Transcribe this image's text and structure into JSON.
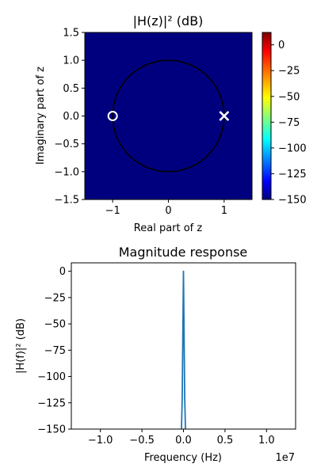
{
  "chart_data": [
    {
      "type": "heatmap",
      "title": "|H(z)|² (dB)",
      "xlabel": "Real part of z",
      "ylabel": "Imaginary part of z",
      "xlim": [
        -1.5,
        1.5
      ],
      "ylim": [
        -1.5,
        1.5
      ],
      "xticks": [
        -1,
        0,
        1
      ],
      "xtick_labels": [
        "−1",
        "0",
        "1"
      ],
      "yticks": [
        1.5,
        1.0,
        0.5,
        0.0,
        -0.5,
        -1.0,
        -1.5
      ],
      "ytick_labels": [
        "1.5",
        "1.0",
        "0.5",
        "0.0",
        "−0.5",
        "−1.0",
        "−1.5"
      ],
      "colormap": "jet",
      "colorbar": {
        "range": [
          -150,
          12
        ],
        "ticks": [
          0,
          -25,
          -50,
          -75,
          -100,
          -125,
          -150
        ],
        "tick_labels": [
          "0",
          "−25",
          "−50",
          "−75",
          "−100",
          "−125",
          "−150"
        ]
      },
      "field_value_db": -150,
      "unit_circle": {
        "center": [
          0,
          0
        ],
        "radius": 1
      },
      "zeros": [
        {
          "re": -1,
          "im": 0
        }
      ],
      "poles": [
        {
          "re": 1,
          "im": 0
        }
      ],
      "grid": false
    },
    {
      "type": "line",
      "title": "Magnitude response",
      "xlabel": "Frequency (Hz)",
      "ylabel": "|H(f)|² (dB)",
      "x_offset_label": "1e7",
      "xlim": [
        -13500000,
        13500000
      ],
      "ylim": [
        -150,
        8
      ],
      "xticks": [
        -10000000,
        -5000000,
        0,
        5000000,
        10000000
      ],
      "xtick_labels": [
        "−1.0",
        "−0.5",
        "0.0",
        "0.5",
        "1.0"
      ],
      "yticks": [
        0,
        -25,
        -50,
        -75,
        -100,
        -125,
        -150
      ],
      "ytick_labels": [
        "0",
        "−25",
        "−50",
        "−75",
        "−100",
        "−125",
        "−150"
      ],
      "series": [
        {
          "color": "#1f77b4",
          "x": [
            -300000,
            -150000,
            -50000,
            0,
            50000,
            150000,
            300000
          ],
          "y": [
            -170,
            -120,
            -40,
            0,
            -40,
            -120,
            -170
          ]
        }
      ],
      "grid": false
    }
  ]
}
